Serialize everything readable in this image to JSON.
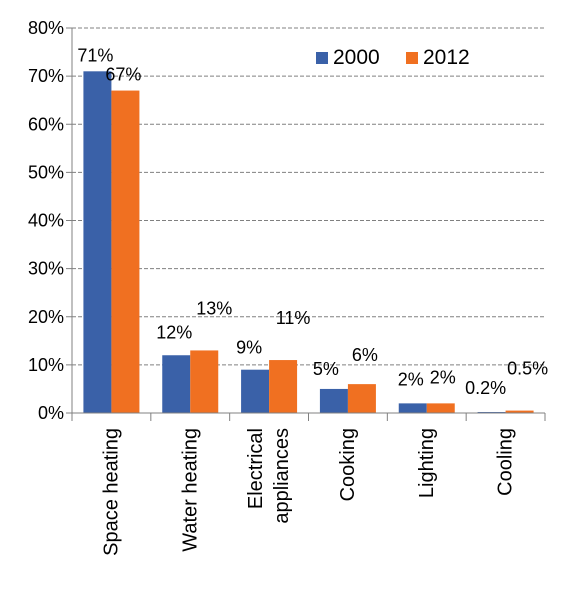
{
  "chart_data": {
    "type": "bar",
    "categories": [
      [
        "Space heating"
      ],
      [
        "Water heating"
      ],
      [
        "Electrical",
        "appliances"
      ],
      [
        "Cooking"
      ],
      [
        "Lighting"
      ],
      [
        "Cooling"
      ]
    ],
    "series": [
      {
        "name": "2000",
        "color": "#3A61A8",
        "values": [
          71,
          12,
          9,
          5,
          2,
          0.2
        ],
        "labels": [
          "71%",
          "12%",
          "9%",
          "5%",
          "2%",
          "0.2%"
        ]
      },
      {
        "name": "2012",
        "color": "#F07021",
        "values": [
          67,
          13,
          11,
          6,
          2,
          0.5
        ],
        "labels": [
          "67%",
          "13%",
          "11%",
          "6%",
          "2%",
          "0.5%"
        ]
      }
    ],
    "ylim": [
      0,
      80
    ],
    "yticks": [
      "0%",
      "10%",
      "20%",
      "30%",
      "40%",
      "50%",
      "60%",
      "70%",
      "80%"
    ],
    "grid": true,
    "legend_position": "top-right"
  }
}
